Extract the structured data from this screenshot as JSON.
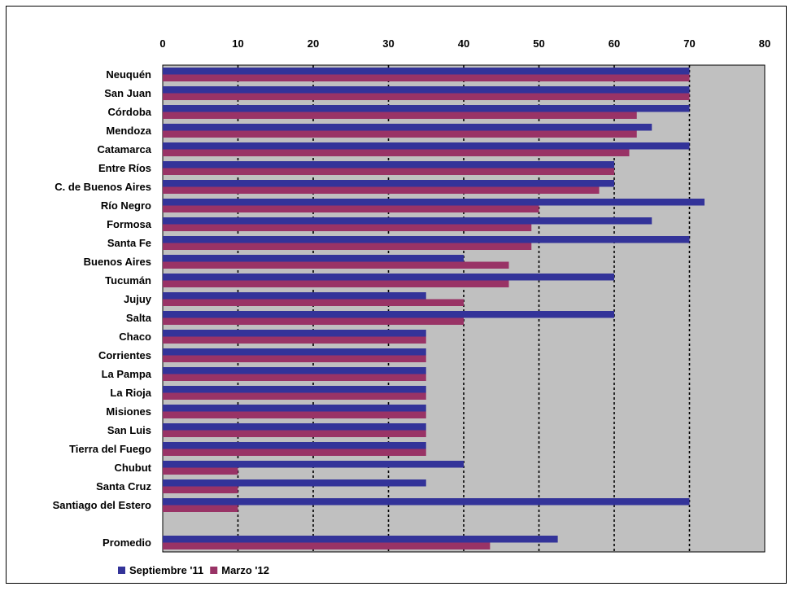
{
  "chart_data": {
    "type": "bar",
    "orientation": "horizontal",
    "title": "",
    "xlabel": "",
    "ylabel": "",
    "xlim": [
      0,
      80
    ],
    "x_ticks": [
      "0",
      "10",
      "20",
      "30",
      "40",
      "50",
      "60",
      "70",
      "80"
    ],
    "x_axis_position": "top",
    "grid": "vertical dotted",
    "legend_position": "bottom-left",
    "categories": [
      "Neuquén",
      "San Juan",
      "Córdoba",
      "Mendoza",
      "Catamarca",
      "Entre Ríos",
      "C. de Buenos Aires",
      "Río Negro",
      "Formosa",
      "Santa Fe",
      "Buenos Aires",
      "Tucumán",
      "Jujuy",
      "Salta",
      "Chaco",
      "Corrientes",
      "La Pampa",
      "La Rioja",
      "Misiones",
      "San Luis",
      "Tierra del Fuego",
      "Chubut",
      "Santa Cruz",
      "Santiago del Estero",
      "",
      "Promedio"
    ],
    "series": [
      {
        "name": "Septiembre '11",
        "color": "#333399",
        "values": [
          70,
          70,
          70,
          65,
          70,
          60,
          60,
          72,
          65,
          70,
          40,
          60,
          35,
          60,
          35,
          35,
          35,
          35,
          35,
          35,
          35,
          40,
          35,
          70,
          null,
          52.5
        ]
      },
      {
        "name": "Marzo '12",
        "color": "#993366",
        "values": [
          70,
          70,
          63,
          63,
          62,
          60,
          58,
          50,
          49,
          49,
          46,
          46,
          40,
          40,
          35,
          35,
          35,
          35,
          35,
          35,
          35,
          10,
          10,
          10,
          null,
          43.5
        ]
      }
    ],
    "plot_background": "#c0c0c0"
  }
}
